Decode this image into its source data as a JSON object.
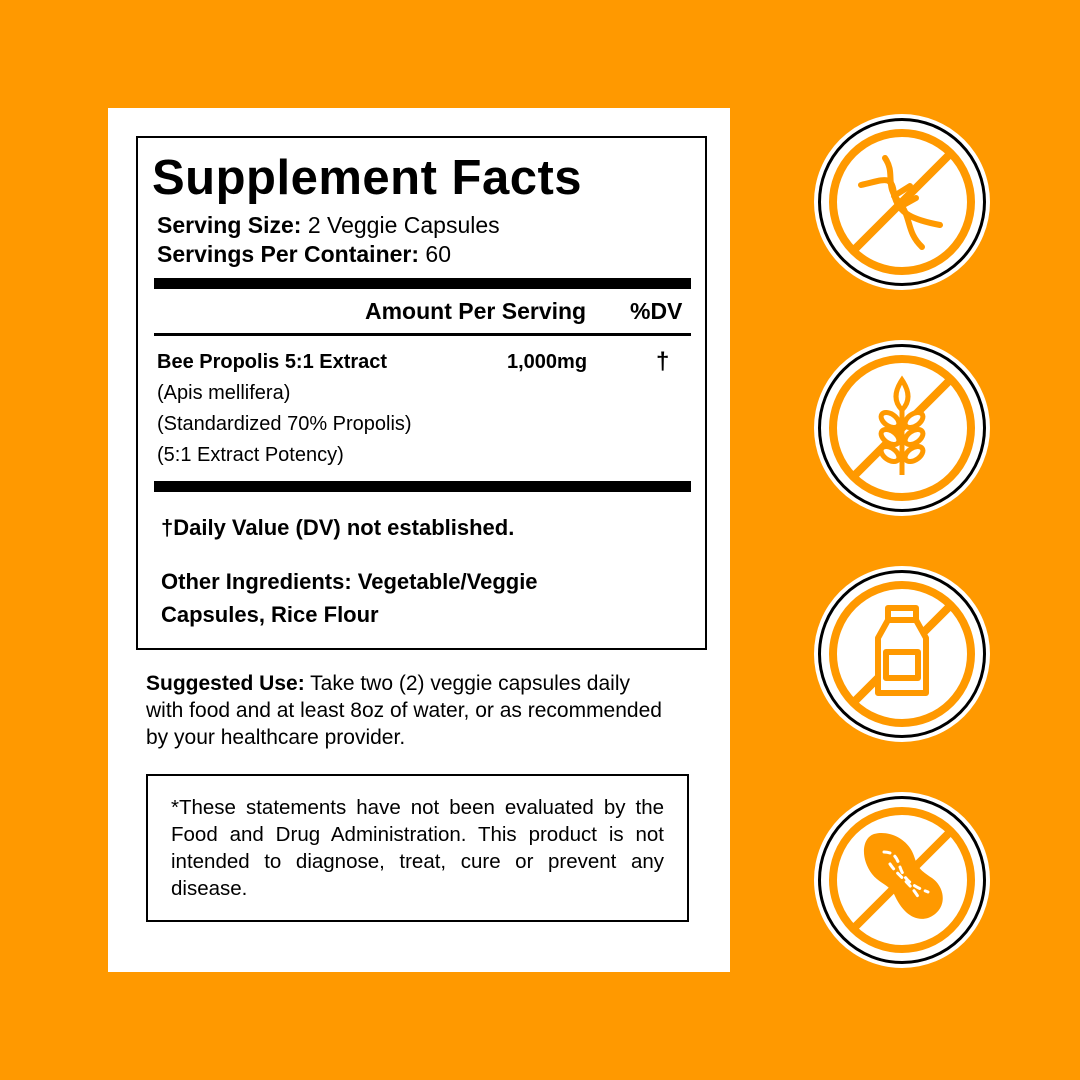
{
  "facts": {
    "title": "Supplement Facts",
    "serving_size_label": "Serving Size:",
    "serving_size_value": " 2 Veggie Capsules",
    "servings_label": "Servings Per Container:",
    "servings_value": " 60",
    "col_amount": "Amount Per Serving",
    "col_dv": "%DV",
    "ingredient": {
      "name": "Bee Propolis 5:1 Extract",
      "amount": "1,000mg",
      "dv": "†",
      "details": [
        "(Apis mellifera)",
        "(Standardized 70% Propolis)",
        "(5:1 Extract Potency)"
      ]
    },
    "dv_note": "†Daily Value (DV) not established.",
    "other_ingredients_line1": "Other Ingredients: Vegetable/Veggie",
    "other_ingredients_line2": "Capsules, Rice Flour"
  },
  "suggested_use": {
    "label": "Suggested Use:",
    "text": " Take two (2) veggie capsules daily with food and at least 8oz of water, or as recommended by your healthcare provider."
  },
  "disclaimer": "*These statements have not been evaluated by the Food and Drug Administration. This product is not intended to diagnose, treat, cure or prevent any disease.",
  "badges": [
    "no-gmo-icon",
    "no-gluten-icon",
    "no-dairy-icon",
    "no-peanut-icon"
  ],
  "colors": {
    "background": "#FF9900",
    "accent": "#FF9900"
  }
}
